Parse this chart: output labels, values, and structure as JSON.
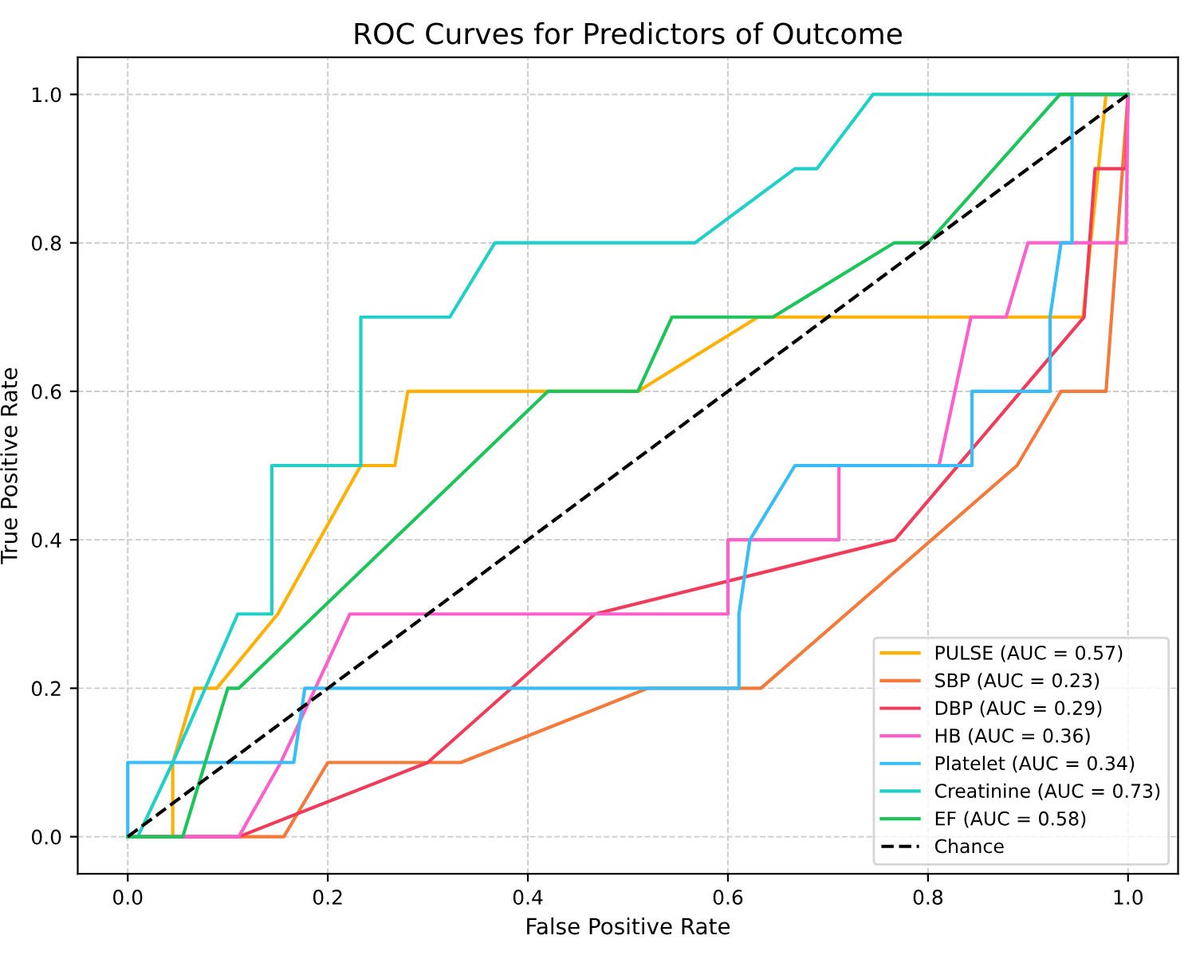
{
  "chart_data": {
    "type": "line",
    "title": "ROC Curves for Predictors of Outcome",
    "xlabel": "False Positive Rate",
    "ylabel": "True Positive Rate",
    "xlim": [
      -0.05,
      1.05
    ],
    "ylim": [
      -0.05,
      1.05
    ],
    "xticks": [
      {
        "value": 0,
        "label": "0.0"
      },
      0.2,
      0.4,
      0.6,
      0.8,
      {
        "value": 1,
        "label": "1.0"
      }
    ],
    "yticks": [
      {
        "value": 0,
        "label": "0.0"
      },
      0.2,
      0.4,
      0.6,
      0.8,
      {
        "value": 1,
        "label": "1.0"
      }
    ],
    "grid": true,
    "legend": "bottom right",
    "marker": "none",
    "line_style": "solid",
    "series": [
      {
        "name": "PULSE (AUC = 0.57)",
        "color": "#ffb000",
        "x": [
          0,
          0.045,
          0.045,
          0.067,
          0.089,
          0.15,
          0.233,
          0.267,
          0.28,
          0.51,
          0.63,
          0.955,
          0.978,
          1
        ],
        "values": [
          0,
          0,
          0.1,
          0.2,
          0.2,
          0.3,
          0.5,
          0.5,
          0.6,
          0.6,
          0.7,
          0.7,
          1.0,
          1.0
        ]
      },
      {
        "name": "SBP (AUC = 0.23)",
        "color": "#f5793a",
        "x": [
          0,
          0.111,
          0.156,
          0.2,
          0.333,
          0.52,
          0.633,
          0.889,
          0.933,
          0.978,
          1
        ],
        "values": [
          0,
          0,
          0,
          0.1,
          0.1,
          0.2,
          0.2,
          0.5,
          0.6,
          0.6,
          1.0
        ]
      },
      {
        "name": "DBP (AUC = 0.29)",
        "color": "#f03c5a",
        "x": [
          0,
          0.111,
          0.3,
          0.467,
          0.767,
          0.956,
          0.967,
          0.998,
          1
        ],
        "values": [
          0,
          0,
          0.1,
          0.3,
          0.4,
          0.7,
          0.9,
          0.9,
          1.0
        ]
      },
      {
        "name": "HB (AUC = 0.36)",
        "color": "#ff5fcb",
        "x": [
          0,
          0.111,
          0.153,
          0.222,
          0.6,
          0.6,
          0.711,
          0.711,
          0.811,
          0.843,
          0.878,
          0.9,
          0.998,
          1
        ],
        "values": [
          0,
          0,
          0.1,
          0.3,
          0.3,
          0.4,
          0.4,
          0.5,
          0.5,
          0.7,
          0.7,
          0.8,
          0.8,
          1.0
        ]
      },
      {
        "name": "Platelet (AUC = 0.34)",
        "color": "#38bdf8",
        "x": [
          0,
          0,
          0.166,
          0.177,
          0.611,
          0.611,
          0.622,
          0.667,
          0.844,
          0.844,
          0.922,
          0.922,
          0.933,
          0.944,
          0.944,
          1
        ],
        "values": [
          0,
          0.1,
          0.1,
          0.2,
          0.2,
          0.3,
          0.4,
          0.5,
          0.5,
          0.6,
          0.6,
          0.7,
          0.8,
          0.8,
          1.0,
          1.0
        ]
      },
      {
        "name": "Creatinine (AUC = 0.73)",
        "color": "#20d0c8",
        "x": [
          0,
          0.01,
          0.045,
          0.11,
          0.144,
          0.144,
          0.233,
          0.233,
          0.322,
          0.367,
          0.567,
          0.667,
          0.689,
          0.745,
          1
        ],
        "values": [
          0,
          0,
          0.1,
          0.3,
          0.3,
          0.5,
          0.5,
          0.7,
          0.7,
          0.8,
          0.8,
          0.9,
          0.9,
          1.0,
          1.0
        ]
      },
      {
        "name": "EF (AUC = 0.58)",
        "color": "#1cc45a",
        "x": [
          0,
          0.055,
          0.1,
          0.111,
          0.42,
          0.51,
          0.544,
          0.645,
          0.766,
          0.8,
          0.932,
          1
        ],
        "values": [
          0,
          0,
          0.2,
          0.2,
          0.6,
          0.6,
          0.7,
          0.7,
          0.8,
          0.8,
          1.0,
          1.0
        ]
      },
      {
        "name": "Chance",
        "color": "#000000",
        "line_style": "dashed",
        "x": [
          0,
          1
        ],
        "values": [
          0,
          1
        ]
      }
    ]
  }
}
